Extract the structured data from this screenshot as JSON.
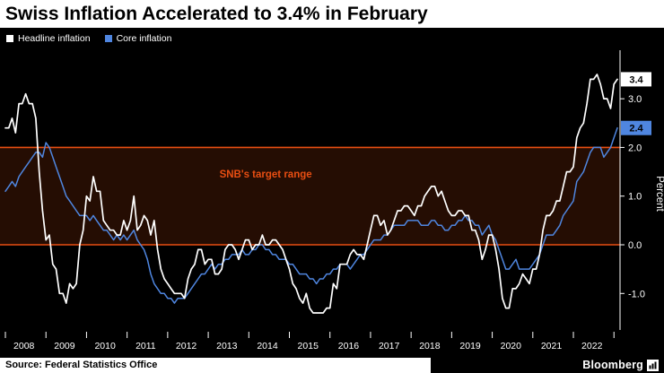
{
  "title": "Swiss Inflation Accelerated to 3.4% in February",
  "legend_items": [
    {
      "label": "Headline inflation",
      "color": "#ffffff"
    },
    {
      "label": "Core inflation",
      "color": "#4f86e0"
    }
  ],
  "footer": {
    "source": "Source: Federal Statistics Office",
    "brand": "Bloomberg"
  },
  "colors": {
    "background": "#000000",
    "text_light": "#ffffff",
    "headline_line": "#ffffff",
    "core_line": "#4f86e0",
    "target_orange": "#e84e12",
    "band_fill": "rgba(232,78,18,0.16)",
    "badge_text": "#000000"
  },
  "chart_data": {
    "type": "line",
    "title": "Swiss Inflation Accelerated to 3.4% in February",
    "frequency": "monthly",
    "x_start": "2008-01",
    "x_end": "2023-02",
    "x_tick_labels": [
      "2008",
      "2009",
      "2010",
      "2011",
      "2012",
      "2013",
      "2014",
      "2015",
      "2016",
      "2017",
      "2018",
      "2019",
      "2020",
      "2021",
      "2022"
    ],
    "ylabel": "Percent",
    "ylim": [
      -1.75,
      3.85
    ],
    "y_ticks": [
      3,
      2,
      1,
      0,
      -1
    ],
    "y_tick_labels": [
      "3.0",
      "2.0",
      "1.0",
      "0.0",
      "-1.0"
    ],
    "grid": false,
    "legend_position": "top-left",
    "target_range": {
      "from": 0,
      "to": 2,
      "label": "SNB's target range"
    },
    "end_value_labels": [
      {
        "label": "3.4",
        "value": 3.4,
        "series": "Headline inflation",
        "bg": "#ffffff"
      },
      {
        "label": "2.4",
        "value": 2.4,
        "series": "Core inflation",
        "bg": "#4f86e0"
      }
    ],
    "series": [
      {
        "name": "Headline inflation",
        "color": "#ffffff",
        "values": [
          2.4,
          2.4,
          2.6,
          2.3,
          2.9,
          2.9,
          3.1,
          2.9,
          2.9,
          2.6,
          1.5,
          0.7,
          0.1,
          0.2,
          -0.4,
          -0.5,
          -1.0,
          -1.0,
          -1.2,
          -0.8,
          -0.9,
          -0.8,
          0.0,
          0.3,
          1.0,
          0.9,
          1.4,
          1.1,
          1.1,
          0.5,
          0.4,
          0.3,
          0.3,
          0.2,
          0.2,
          0.5,
          0.3,
          0.5,
          1.0,
          0.3,
          0.4,
          0.6,
          0.5,
          0.2,
          0.5,
          -0.1,
          -0.5,
          -0.7,
          -0.8,
          -0.9,
          -1.0,
          -1.0,
          -1.0,
          -1.1,
          -0.7,
          -0.5,
          -0.4,
          -0.1,
          -0.1,
          -0.4,
          -0.3,
          -0.3,
          -0.6,
          -0.6,
          -0.5,
          -0.1,
          0.0,
          0.0,
          -0.1,
          -0.3,
          -0.1,
          0.1,
          0.1,
          -0.1,
          0.0,
          0.0,
          0.2,
          0.0,
          0.0,
          0.1,
          0.1,
          0.0,
          -0.1,
          -0.3,
          -0.5,
          -0.8,
          -0.9,
          -1.1,
          -1.2,
          -1.0,
          -1.3,
          -1.4,
          -1.4,
          -1.4,
          -1.4,
          -1.3,
          -1.3,
          -0.8,
          -0.9,
          -0.4,
          -0.4,
          -0.4,
          -0.2,
          -0.1,
          -0.2,
          -0.2,
          -0.3,
          0.0,
          0.3,
          0.6,
          0.6,
          0.4,
          0.5,
          0.2,
          0.3,
          0.5,
          0.7,
          0.7,
          0.8,
          0.8,
          0.7,
          0.6,
          0.8,
          0.8,
          1.0,
          1.1,
          1.2,
          1.2,
          1.0,
          1.1,
          0.9,
          0.7,
          0.6,
          0.6,
          0.7,
          0.7,
          0.6,
          0.6,
          0.3,
          0.3,
          0.1,
          -0.3,
          -0.1,
          0.2,
          0.2,
          -0.1,
          -0.5,
          -1.1,
          -1.3,
          -1.3,
          -0.9,
          -0.9,
          -0.8,
          -0.6,
          -0.7,
          -0.8,
          -0.5,
          -0.5,
          -0.2,
          0.3,
          0.6,
          0.6,
          0.7,
          0.9,
          0.9,
          1.2,
          1.5,
          1.5,
          1.6,
          2.2,
          2.4,
          2.5,
          2.9,
          3.4,
          3.4,
          3.5,
          3.3,
          3.0,
          3.0,
          2.8,
          3.3,
          3.4
        ]
      },
      {
        "name": "Core inflation",
        "color": "#4f86e0",
        "values": [
          1.1,
          1.2,
          1.3,
          1.2,
          1.4,
          1.5,
          1.6,
          1.7,
          1.8,
          1.9,
          1.9,
          1.8,
          2.1,
          2.0,
          1.8,
          1.6,
          1.4,
          1.2,
          1.0,
          0.9,
          0.8,
          0.7,
          0.6,
          0.6,
          0.6,
          0.5,
          0.6,
          0.5,
          0.4,
          0.3,
          0.3,
          0.2,
          0.1,
          0.2,
          0.1,
          0.2,
          0.1,
          0.2,
          0.3,
          0.1,
          0.0,
          -0.1,
          -0.3,
          -0.6,
          -0.8,
          -0.9,
          -1.0,
          -1.0,
          -1.1,
          -1.1,
          -1.2,
          -1.1,
          -1.1,
          -1.1,
          -1.0,
          -0.9,
          -0.8,
          -0.7,
          -0.6,
          -0.6,
          -0.5,
          -0.4,
          -0.5,
          -0.4,
          -0.4,
          -0.3,
          -0.3,
          -0.2,
          -0.2,
          -0.2,
          -0.1,
          -0.2,
          -0.2,
          -0.1,
          -0.1,
          0.0,
          0.0,
          -0.1,
          -0.1,
          -0.2,
          -0.2,
          -0.3,
          -0.3,
          -0.3,
          -0.4,
          -0.4,
          -0.5,
          -0.6,
          -0.6,
          -0.6,
          -0.7,
          -0.7,
          -0.8,
          -0.7,
          -0.7,
          -0.6,
          -0.6,
          -0.5,
          -0.5,
          -0.4,
          -0.4,
          -0.4,
          -0.5,
          -0.4,
          -0.3,
          -0.2,
          -0.2,
          -0.1,
          0.0,
          0.1,
          0.1,
          0.1,
          0.2,
          0.2,
          0.3,
          0.4,
          0.4,
          0.4,
          0.4,
          0.5,
          0.5,
          0.5,
          0.5,
          0.4,
          0.4,
          0.4,
          0.5,
          0.5,
          0.4,
          0.4,
          0.3,
          0.3,
          0.4,
          0.4,
          0.5,
          0.5,
          0.6,
          0.5,
          0.5,
          0.4,
          0.4,
          0.2,
          0.3,
          0.4,
          0.2,
          0.1,
          -0.1,
          -0.3,
          -0.5,
          -0.5,
          -0.4,
          -0.3,
          -0.5,
          -0.5,
          -0.5,
          -0.5,
          -0.4,
          -0.3,
          -0.2,
          0.0,
          0.2,
          0.2,
          0.2,
          0.3,
          0.4,
          0.6,
          0.7,
          0.8,
          0.9,
          1.3,
          1.4,
          1.5,
          1.7,
          1.9,
          2.0,
          2.0,
          2.0,
          1.8,
          1.9,
          2.0,
          2.2,
          2.4
        ]
      }
    ]
  }
}
